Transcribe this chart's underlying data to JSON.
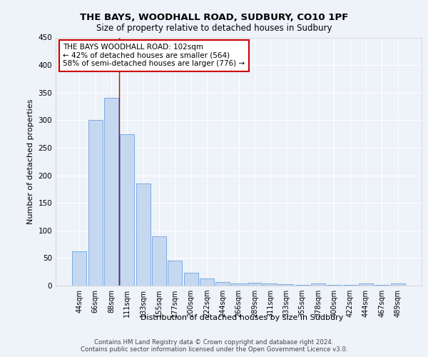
{
  "title1": "THE BAYS, WOODHALL ROAD, SUDBURY, CO10 1PF",
  "title2": "Size of property relative to detached houses in Sudbury",
  "xlabel": "Distribution of detached houses by size in Sudbury",
  "ylabel": "Number of detached properties",
  "categories": [
    "44sqm",
    "66sqm",
    "88sqm",
    "111sqm",
    "133sqm",
    "155sqm",
    "177sqm",
    "200sqm",
    "222sqm",
    "244sqm",
    "266sqm",
    "289sqm",
    "311sqm",
    "333sqm",
    "355sqm",
    "378sqm",
    "400sqm",
    "422sqm",
    "444sqm",
    "467sqm",
    "489sqm"
  ],
  "values": [
    62,
    301,
    340,
    274,
    185,
    90,
    45,
    23,
    13,
    7,
    4,
    5,
    4,
    3,
    1,
    4,
    1,
    1,
    4,
    1,
    4
  ],
  "bar_color": "#c5d8f0",
  "bar_edge_color": "#7aace4",
  "vline_x": 3.0,
  "vline_color": "#cc0000",
  "annotation_line1": "THE BAYS WOODHALL ROAD: 102sqm",
  "annotation_line2": "← 42% of detached houses are smaller (564)",
  "annotation_line3": "58% of semi-detached houses are larger (776) →",
  "annotation_box_color": "#ffffff",
  "annotation_box_edge_color": "#cc0000",
  "ylim": [
    0,
    450
  ],
  "yticks": [
    0,
    50,
    100,
    150,
    200,
    250,
    300,
    350,
    400,
    450
  ],
  "footer1": "Contains HM Land Registry data © Crown copyright and database right 2024.",
  "footer2": "Contains public sector information licensed under the Open Government Licence v3.0.",
  "background_color": "#eef2f9",
  "grid_color": "#ffffff",
  "spine_color": "#cccccc"
}
